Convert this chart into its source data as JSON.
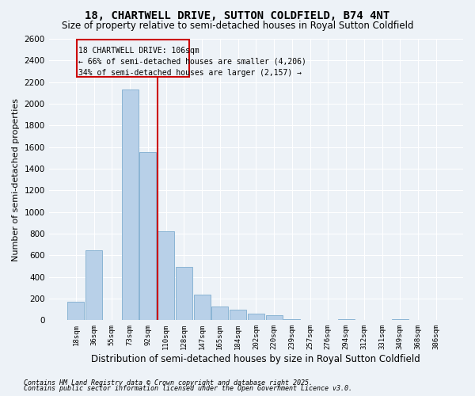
{
  "title": "18, CHARTWELL DRIVE, SUTTON COLDFIELD, B74 4NT",
  "subtitle": "Size of property relative to semi-detached houses in Royal Sutton Coldfield",
  "xlabel": "Distribution of semi-detached houses by size in Royal Sutton Coldfield",
  "ylabel": "Number of semi-detached properties",
  "categories": [
    "18sqm",
    "36sqm",
    "55sqm",
    "73sqm",
    "92sqm",
    "110sqm",
    "128sqm",
    "147sqm",
    "165sqm",
    "184sqm",
    "202sqm",
    "220sqm",
    "239sqm",
    "257sqm",
    "276sqm",
    "294sqm",
    "312sqm",
    "331sqm",
    "349sqm",
    "368sqm",
    "386sqm"
  ],
  "values": [
    170,
    650,
    5,
    2130,
    1555,
    820,
    490,
    240,
    130,
    100,
    60,
    50,
    10,
    0,
    0,
    10,
    0,
    0,
    10,
    0,
    0
  ],
  "bar_color": "#b8d0e8",
  "bar_edge_color": "#8ab4d4",
  "vline_x_index": 5,
  "vline_color": "#cc0000",
  "ylim": [
    0,
    2600
  ],
  "yticks": [
    0,
    200,
    400,
    600,
    800,
    1000,
    1200,
    1400,
    1600,
    1800,
    2000,
    2200,
    2400,
    2600
  ],
  "annotation_title": "18 CHARTWELL DRIVE: 106sqm",
  "annotation_line1": "← 66% of semi-detached houses are smaller (4,206)",
  "annotation_line2": "34% of semi-detached houses are larger (2,157) →",
  "annotation_box_color": "#cc0000",
  "footer_line1": "Contains HM Land Registry data © Crown copyright and database right 2025.",
  "footer_line2": "Contains public sector information licensed under the Open Government Licence v3.0.",
  "bg_color": "#edf2f7",
  "grid_color": "#ffffff",
  "title_fontsize": 10,
  "subtitle_fontsize": 8.5,
  "xlabel_fontsize": 8.5,
  "ylabel_fontsize": 8
}
